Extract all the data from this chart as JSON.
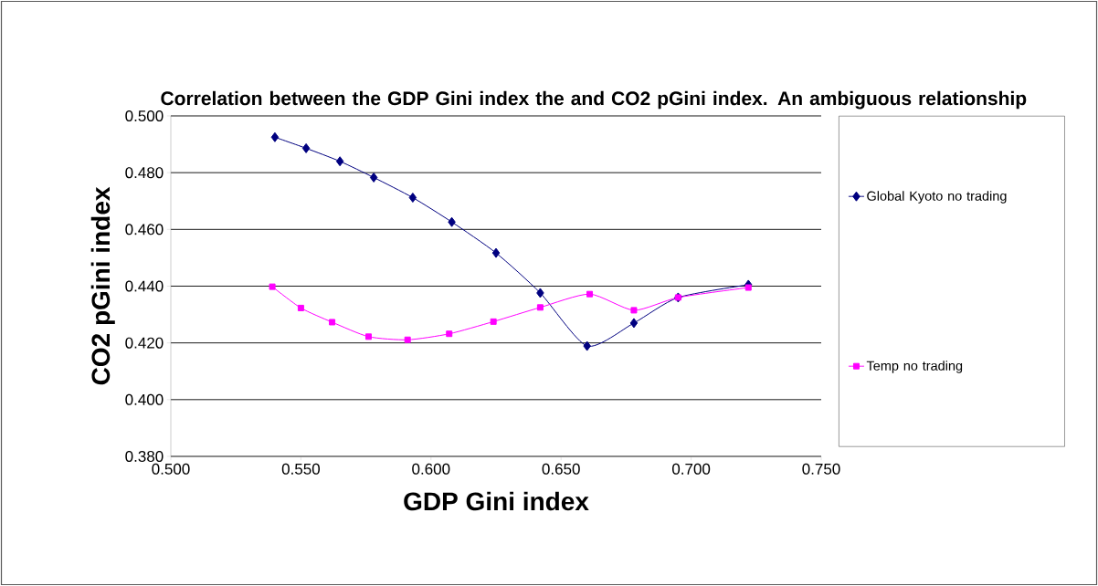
{
  "chart_data": {
    "type": "line",
    "title": "Correlation between the GDP Gini index the and CO2 pGini index.  An ambiguous relationship",
    "xlabel": "GDP Gini index",
    "ylabel": "CO2 pGini index",
    "xlim": [
      0.5,
      0.75
    ],
    "ylim": [
      0.38,
      0.5
    ],
    "xticks": [
      {
        "value": 0.5,
        "label": "0.500"
      },
      {
        "value": 0.55,
        "label": "0.550"
      },
      {
        "value": 0.6,
        "label": "0.600"
      },
      {
        "value": 0.65,
        "label": "0.650"
      },
      {
        "value": 0.7,
        "label": "0.700"
      },
      {
        "value": 0.75,
        "label": "0.750"
      }
    ],
    "yticks": [
      {
        "value": 0.38,
        "label": "0.380"
      },
      {
        "value": 0.4,
        "label": "0.400"
      },
      {
        "value": 0.42,
        "label": "0.420"
      },
      {
        "value": 0.44,
        "label": "0.440"
      },
      {
        "value": 0.46,
        "label": "0.460"
      },
      {
        "value": 0.48,
        "label": "0.480"
      },
      {
        "value": 0.5,
        "label": "0.500"
      }
    ],
    "grid": "y",
    "legend": "right",
    "line_style": "solid",
    "series": [
      {
        "name": "Global Kyoto no trading",
        "color": "#000080",
        "marker": "diamond",
        "x": [
          0.54,
          0.552,
          0.565,
          0.578,
          0.593,
          0.608,
          0.625,
          0.642,
          0.66,
          0.678,
          0.695,
          0.722
        ],
        "values": [
          0.4925,
          0.4886,
          0.484,
          0.4783,
          0.4712,
          0.4626,
          0.4517,
          0.4376,
          0.4189,
          0.427,
          0.436,
          0.4405
        ]
      },
      {
        "name": "Temp no trading",
        "color": "#ff00ff",
        "marker": "square",
        "x": [
          0.539,
          0.55,
          0.562,
          0.576,
          0.591,
          0.607,
          0.624,
          0.642,
          0.661,
          0.678,
          0.695,
          0.722
        ],
        "values": [
          0.4398,
          0.4323,
          0.4273,
          0.4222,
          0.4211,
          0.4232,
          0.4275,
          0.4325,
          0.4372,
          0.4315,
          0.436,
          0.4395
        ]
      }
    ]
  }
}
